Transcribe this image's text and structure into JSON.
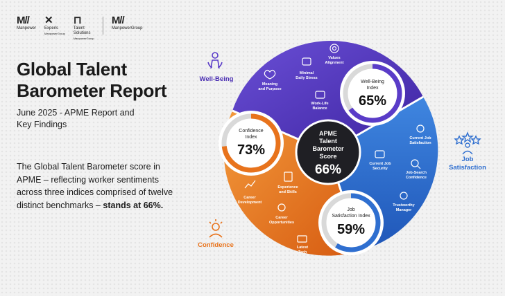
{
  "logos": [
    {
      "mark": "M//",
      "name": "Manpower",
      "sub": ""
    },
    {
      "mark": "✕",
      "name": "Experis",
      "sub": "ManpowerGroup"
    },
    {
      "mark": "⊓",
      "name": "Talent Solutions",
      "sub": "ManpowerGroup"
    },
    {
      "mark": "M//",
      "name": "ManpowerGroup",
      "sub": ""
    }
  ],
  "title_line1": "Global Talent",
  "title_line2": "Barometer Report",
  "subtitle_line1": "June 2025 - APME Report and",
  "subtitle_line2": "Key Findings",
  "summary_text": "The Global Talent Barometer score in APME – reflecting worker sentiments across three indices comprised of twelve distinct benchmarks –",
  "summary_bold": "stands at 66%.",
  "center": {
    "line1": "APME",
    "line2": "Talent",
    "line3": "Barometer",
    "line4": "Score",
    "value": "66%"
  },
  "indices": {
    "wellbeing": {
      "label_line1": "Well-Being",
      "label_line2": "Index",
      "value": "65%",
      "fraction": 0.65
    },
    "confidence": {
      "label_line1": "Confidence",
      "label_line2": "Index",
      "value": "73%",
      "fraction": 0.73
    },
    "job": {
      "label_line1": "Job",
      "label_line2": "Satisfaction Index",
      "value": "59%",
      "fraction": 0.59
    }
  },
  "side_labels": {
    "wellbeing": "Well-Being",
    "job_line1": "Job",
    "job_line2": "Satisfaction",
    "confidence": "Confidence"
  },
  "benchmarks": {
    "meaning": [
      "Meaning",
      "and Purpose"
    ],
    "stress": [
      "Minimal",
      "Daily Stress"
    ],
    "values": [
      "Values",
      "Alignment"
    ],
    "worklife": [
      "Work-Life",
      "Balance"
    ],
    "job_satisfaction": [
      "Current Job",
      "Satisfaction"
    ],
    "job_security": [
      "Current Job",
      "Security"
    ],
    "job_search": [
      "Job-Search",
      "Confidence"
    ],
    "manager": [
      "Trustworthy",
      "Manager"
    ],
    "experience": [
      "Experience",
      "and Skills"
    ],
    "career_dev": [
      "Career",
      "Development"
    ],
    "career_opp": [
      "Career",
      "Opportunities"
    ],
    "latest_tech": [
      "Latest",
      "Tech"
    ]
  },
  "colors": {
    "purple": "#4b2fb3",
    "blue": "#2f6fd0",
    "orange": "#e8731c",
    "dark": "#1f1f24",
    "ring_gray": "#d9d9d9"
  }
}
